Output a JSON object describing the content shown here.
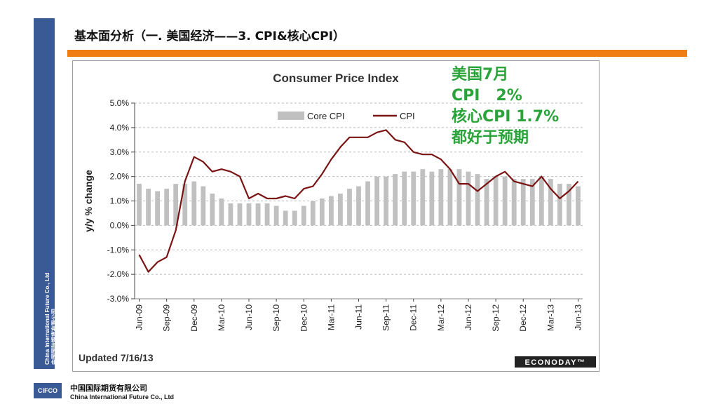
{
  "slide": {
    "title": "基本面分析（一. 美国经济——3. CPI&核心CPI）",
    "side_text_en": "China International Future Co., Ltd",
    "side_text_cn": "中国国际期货有限公司",
    "footer_cn": "中国国际期货有限公司",
    "footer_en": "China International Future Co., Ltd",
    "logo_text": "CIFCO",
    "colors": {
      "brand_blue": "#3a5a96",
      "accent_orange": "#f07d14",
      "note_green": "#2aa43a"
    }
  },
  "annotation": {
    "line1": "美国7月",
    "line2": "CPI   2%",
    "line3": "核心CPI 1.7%",
    "line4": "都好于预期"
  },
  "chart_data": {
    "type": "bar",
    "title": "Consumer Price Index",
    "ylabel": "y/y % change",
    "xlabel": "",
    "ylim": [
      -3.0,
      5.0
    ],
    "y_ticks": [
      "5.0%",
      "4.0%",
      "3.0%",
      "2.0%",
      "1.0%",
      "0.0%",
      "-1.0%",
      "-2.0%",
      "-3.0%"
    ],
    "x_tick_labels": [
      "Jun-09",
      "Sep-09",
      "Dec-09",
      "Mar-10",
      "Jun-10",
      "Sep-10",
      "Dec-10",
      "Mar-11",
      "Jun-11",
      "Sep-11",
      "Dec-11",
      "Mar-12",
      "Jun-12",
      "Sep-12",
      "Dec-12",
      "Mar-13",
      "Jun-13"
    ],
    "grid": true,
    "legend_position": "top",
    "footer_note": "Updated 7/16/13",
    "source_logo": "ECONODAY™",
    "categories": [
      "Jun-09",
      "Jul-09",
      "Aug-09",
      "Sep-09",
      "Oct-09",
      "Nov-09",
      "Dec-09",
      "Jan-10",
      "Feb-10",
      "Mar-10",
      "Apr-10",
      "May-10",
      "Jun-10",
      "Jul-10",
      "Aug-10",
      "Sep-10",
      "Oct-10",
      "Nov-10",
      "Dec-10",
      "Jan-11",
      "Feb-11",
      "Mar-11",
      "Apr-11",
      "May-11",
      "Jun-11",
      "Jul-11",
      "Aug-11",
      "Sep-11",
      "Oct-11",
      "Nov-11",
      "Dec-11",
      "Jan-12",
      "Feb-12",
      "Mar-12",
      "Apr-12",
      "May-12",
      "Jun-12",
      "Jul-12",
      "Aug-12",
      "Sep-12",
      "Oct-12",
      "Nov-12",
      "Dec-12",
      "Jan-13",
      "Feb-13",
      "Mar-13",
      "Apr-13",
      "May-13",
      "Jun-13"
    ],
    "series": [
      {
        "name": "Core CPI",
        "kind": "bar",
        "color": "#c0c0c0",
        "values": [
          1.7,
          1.5,
          1.4,
          1.5,
          1.7,
          1.7,
          1.8,
          1.6,
          1.3,
          1.1,
          0.9,
          0.9,
          0.9,
          0.9,
          0.9,
          0.8,
          0.6,
          0.6,
          0.8,
          1.0,
          1.1,
          1.2,
          1.3,
          1.5,
          1.6,
          1.8,
          2.0,
          2.0,
          2.1,
          2.2,
          2.2,
          2.3,
          2.2,
          2.3,
          2.3,
          2.3,
          2.2,
          2.1,
          1.9,
          2.0,
          2.0,
          1.9,
          1.9,
          1.9,
          2.0,
          1.9,
          1.7,
          1.7,
          1.6
        ]
      },
      {
        "name": "CPI",
        "kind": "line",
        "color": "#7a1414",
        "values": [
          -1.2,
          -1.9,
          -1.5,
          -1.3,
          -0.2,
          1.8,
          2.8,
          2.6,
          2.2,
          2.3,
          2.2,
          2.0,
          1.1,
          1.3,
          1.1,
          1.1,
          1.2,
          1.1,
          1.5,
          1.6,
          2.1,
          2.7,
          3.2,
          3.6,
          3.6,
          3.6,
          3.8,
          3.9,
          3.5,
          3.4,
          3.0,
          2.9,
          2.9,
          2.7,
          2.3,
          1.7,
          1.7,
          1.4,
          1.7,
          2.0,
          2.2,
          1.8,
          1.7,
          1.6,
          2.0,
          1.5,
          1.1,
          1.4,
          1.8
        ]
      }
    ]
  }
}
